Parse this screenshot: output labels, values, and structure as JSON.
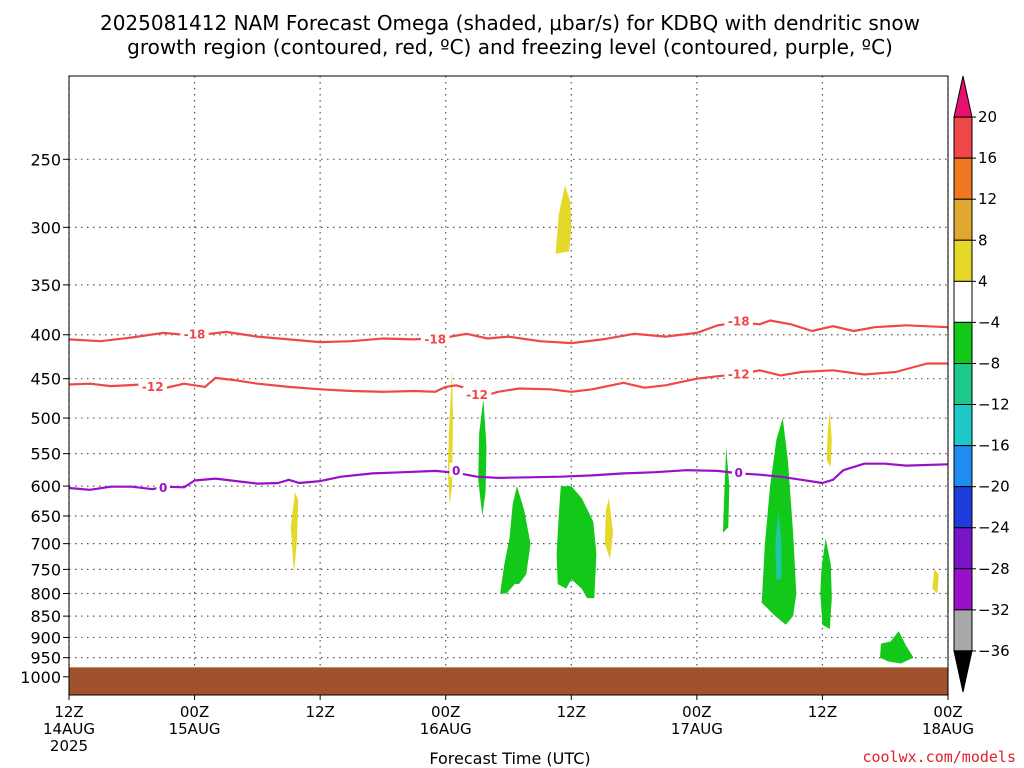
{
  "chart_data": {
    "type": "contour",
    "title_line1": "2025081412 NAM Forecast Omega (shaded, μbar/s) for KDBQ with dendritic snow",
    "title_line2": "growth region (contoured, red, ºC) and freezing level (contoured, purple, ºC)",
    "xlabel": "Forecast Time (UTC)",
    "credit": "coolwx.com/models",
    "colors": {
      "dendritic": "#f04848",
      "freezing": "#9a10c8",
      "ground": "#a0522d",
      "grid": "#555555"
    },
    "y_axis": {
      "scale": "log-pressure",
      "range": [
        200,
        1050
      ],
      "ticks": [
        250,
        300,
        350,
        400,
        450,
        500,
        550,
        600,
        650,
        700,
        750,
        800,
        850,
        900,
        950,
        1000
      ]
    },
    "x_axis": {
      "range_hours": [
        0,
        84
      ],
      "ticks": [
        {
          "hour": 0,
          "line1": "12Z",
          "line2": "14AUG",
          "line3": "2025"
        },
        {
          "hour": 12,
          "line1": "00Z",
          "line2": "15AUG",
          "line3": ""
        },
        {
          "hour": 24,
          "line1": "12Z",
          "line2": "",
          "line3": ""
        },
        {
          "hour": 36,
          "line1": "00Z",
          "line2": "16AUG",
          "line3": ""
        },
        {
          "hour": 48,
          "line1": "12Z",
          "line2": "",
          "line3": ""
        },
        {
          "hour": 60,
          "line1": "00Z",
          "line2": "17AUG",
          "line3": ""
        },
        {
          "hour": 72,
          "line1": "12Z",
          "line2": "",
          "line3": ""
        },
        {
          "hour": 84,
          "line1": "00Z",
          "line2": "18AUG",
          "line3": ""
        }
      ]
    },
    "contours": [
      {
        "name": "-18",
        "color_key": "dendritic",
        "label": "-18",
        "points": [
          [
            0,
            405
          ],
          [
            3,
            407
          ],
          [
            6,
            403
          ],
          [
            9,
            398
          ],
          [
            12,
            401
          ],
          [
            15,
            397
          ],
          [
            18,
            402
          ],
          [
            21,
            405
          ],
          [
            24,
            408
          ],
          [
            27,
            407
          ],
          [
            30,
            404
          ],
          [
            33,
            405
          ],
          [
            36,
            403
          ],
          [
            38,
            399
          ],
          [
            40,
            404
          ],
          [
            42,
            402
          ],
          [
            45,
            407
          ],
          [
            48,
            409
          ],
          [
            51,
            405
          ],
          [
            54,
            399
          ],
          [
            57,
            402
          ],
          [
            60,
            398
          ],
          [
            62,
            390
          ],
          [
            64,
            387
          ],
          [
            66,
            389
          ],
          [
            67,
            385
          ],
          [
            69,
            389
          ],
          [
            71,
            396
          ],
          [
            73,
            391
          ],
          [
            75,
            396
          ],
          [
            77,
            392
          ],
          [
            80,
            390
          ],
          [
            84,
            392
          ]
        ],
        "label_positions": [
          [
            12,
            400
          ],
          [
            35,
            405
          ],
          [
            64,
            386
          ]
        ]
      },
      {
        "name": "-12",
        "color_key": "dendritic",
        "label": "-12",
        "points": [
          [
            0,
            457
          ],
          [
            2,
            456
          ],
          [
            4,
            459
          ],
          [
            7,
            457
          ],
          [
            9,
            462
          ],
          [
            11,
            456
          ],
          [
            13,
            460
          ],
          [
            14,
            449
          ],
          [
            16,
            452
          ],
          [
            18,
            456
          ],
          [
            21,
            460
          ],
          [
            24,
            463
          ],
          [
            27,
            465
          ],
          [
            30,
            466
          ],
          [
            33,
            465
          ],
          [
            35,
            466
          ],
          [
            36,
            460
          ],
          [
            37,
            458
          ],
          [
            38,
            462
          ],
          [
            39,
            470
          ],
          [
            40,
            470
          ],
          [
            41,
            466
          ],
          [
            43,
            462
          ],
          [
            46,
            463
          ],
          [
            48,
            466
          ],
          [
            50,
            463
          ],
          [
            53,
            455
          ],
          [
            55,
            461
          ],
          [
            57,
            458
          ],
          [
            60,
            450
          ],
          [
            62,
            447
          ],
          [
            64,
            445
          ],
          [
            66,
            440
          ],
          [
            68,
            446
          ],
          [
            70,
            442
          ],
          [
            73,
            440
          ],
          [
            76,
            445
          ],
          [
            79,
            442
          ],
          [
            82,
            432
          ],
          [
            84,
            432
          ]
        ],
        "label_positions": [
          [
            8,
            460
          ],
          [
            39,
            470
          ],
          [
            64,
            445
          ]
        ]
      },
      {
        "name": "0",
        "color_key": "freezing",
        "label": "0",
        "points": [
          [
            0,
            603
          ],
          [
            2,
            606
          ],
          [
            4,
            601
          ],
          [
            6,
            601
          ],
          [
            8,
            605
          ],
          [
            9,
            601
          ],
          [
            11,
            602
          ],
          [
            12,
            591
          ],
          [
            14,
            588
          ],
          [
            16,
            592
          ],
          [
            18,
            596
          ],
          [
            20,
            595
          ],
          [
            21,
            590
          ],
          [
            22,
            595
          ],
          [
            24,
            592
          ],
          [
            26,
            585
          ],
          [
            29,
            580
          ],
          [
            32,
            578
          ],
          [
            35,
            576
          ],
          [
            37,
            579
          ],
          [
            39,
            585
          ],
          [
            41,
            587
          ],
          [
            44,
            586
          ],
          [
            47,
            585
          ],
          [
            50,
            583
          ],
          [
            53,
            580
          ],
          [
            56,
            578
          ],
          [
            59,
            575
          ],
          [
            62,
            576
          ],
          [
            64,
            580
          ],
          [
            66,
            582
          ],
          [
            68,
            585
          ],
          [
            70,
            590
          ],
          [
            72,
            595
          ],
          [
            73,
            590
          ],
          [
            74,
            575
          ],
          [
            76,
            565
          ],
          [
            78,
            565
          ],
          [
            80,
            568
          ],
          [
            84,
            566
          ]
        ],
        "label_positions": [
          [
            9,
            603
          ],
          [
            37,
            576
          ],
          [
            64,
            579
          ]
        ]
      }
    ],
    "omega_regions": [
      {
        "name": "yellow-300",
        "color": "#e6d828",
        "class": "4 to 8",
        "points": [
          [
            46.5,
            322
          ],
          [
            46.8,
            290
          ],
          [
            47.4,
            268
          ],
          [
            47.9,
            280
          ],
          [
            48.0,
            300
          ],
          [
            47.8,
            320
          ]
        ]
      },
      {
        "name": "yellow-740",
        "color": "#e6d828",
        "class": "4 to 8",
        "points": [
          [
            21.2,
            670
          ],
          [
            21.6,
            610
          ],
          [
            21.9,
            622
          ],
          [
            21.8,
            690
          ],
          [
            21.5,
            760
          ]
        ]
      },
      {
        "name": "yellow-520",
        "color": "#e6d828",
        "class": "4 to 8",
        "points": [
          [
            36.2,
            580
          ],
          [
            36.3,
            520
          ],
          [
            36.6,
            440
          ],
          [
            36.7,
            500
          ],
          [
            36.6,
            600
          ],
          [
            36.4,
            630
          ]
        ]
      },
      {
        "name": "green-550",
        "color": "#12c818",
        "class": "-4 to -8",
        "points": [
          [
            39.1,
            590
          ],
          [
            39.2,
            520
          ],
          [
            39.6,
            475
          ],
          [
            39.9,
            540
          ],
          [
            39.8,
            610
          ],
          [
            39.5,
            650
          ]
        ]
      },
      {
        "name": "green-720",
        "color": "#12c818",
        "class": "-4 to -8",
        "points": [
          [
            41.2,
            800
          ],
          [
            41.6,
            740
          ],
          [
            42.1,
            690
          ],
          [
            42.4,
            630
          ],
          [
            42.8,
            600
          ],
          [
            43.5,
            640
          ],
          [
            44.1,
            700
          ],
          [
            43.7,
            760
          ],
          [
            43.0,
            780
          ],
          [
            42.6,
            780
          ],
          [
            41.8,
            800
          ]
        ]
      },
      {
        "name": "green-700",
        "color": "#12c818",
        "class": "-4 to -8",
        "points": [
          [
            46.7,
            780
          ],
          [
            46.6,
            720
          ],
          [
            46.8,
            650
          ],
          [
            47.0,
            600
          ],
          [
            48.0,
            600
          ],
          [
            49.0,
            620
          ],
          [
            50.1,
            660
          ],
          [
            50.4,
            720
          ],
          [
            50.2,
            810
          ],
          [
            49.5,
            810
          ],
          [
            49.0,
            790
          ],
          [
            48.0,
            770
          ],
          [
            47.5,
            790
          ]
        ]
      },
      {
        "name": "yellow-680",
        "color": "#e6d828",
        "class": "4 to 8",
        "points": [
          [
            51.2,
            700
          ],
          [
            51.3,
            640
          ],
          [
            51.6,
            620
          ],
          [
            52.0,
            680
          ],
          [
            51.7,
            730
          ]
        ]
      },
      {
        "name": "green-630",
        "color": "#12c818",
        "class": "-4 to -8",
        "points": [
          [
            62.5,
            680
          ],
          [
            62.6,
            620
          ],
          [
            62.8,
            540
          ],
          [
            63.1,
            600
          ],
          [
            63.0,
            670
          ]
        ]
      },
      {
        "name": "green-730",
        "color": "#12c818",
        "class": "-4 to -8",
        "points": [
          [
            66.2,
            820
          ],
          [
            66.5,
            700
          ],
          [
            67.0,
            600
          ],
          [
            67.6,
            530
          ],
          [
            68.2,
            500
          ],
          [
            68.7,
            560
          ],
          [
            69.2,
            680
          ],
          [
            69.5,
            800
          ],
          [
            69.2,
            850
          ],
          [
            68.5,
            870
          ],
          [
            67.5,
            850
          ]
        ]
      },
      {
        "name": "cyan-710",
        "color": "#1ec8a0",
        "class": "-8 to -12",
        "points": [
          [
            67.6,
            770
          ],
          [
            67.5,
            700
          ],
          [
            67.8,
            640
          ],
          [
            68.1,
            700
          ],
          [
            68.1,
            770
          ]
        ]
      },
      {
        "name": "yellow-530",
        "color": "#e6d828",
        "class": "4 to 8",
        "points": [
          [
            72.4,
            560
          ],
          [
            72.5,
            520
          ],
          [
            72.7,
            490
          ],
          [
            72.9,
            530
          ],
          [
            72.8,
            570
          ]
        ]
      },
      {
        "name": "green-800",
        "color": "#12c818",
        "class": "-4 to -8",
        "points": [
          [
            72.0,
            870
          ],
          [
            71.8,
            800
          ],
          [
            71.9,
            750
          ],
          [
            72.3,
            690
          ],
          [
            72.8,
            740
          ],
          [
            72.9,
            810
          ],
          [
            72.7,
            880
          ]
        ]
      },
      {
        "name": "green-930",
        "color": "#12c818",
        "class": "-4 to -8",
        "points": [
          [
            77.5,
            950
          ],
          [
            77.6,
            915
          ],
          [
            78.5,
            910
          ],
          [
            79.3,
            885
          ],
          [
            80.0,
            920
          ],
          [
            80.7,
            950
          ],
          [
            79.5,
            965
          ],
          [
            78.3,
            960
          ]
        ]
      },
      {
        "name": "yellow-775",
        "color": "#e6d828",
        "class": "4 to 8",
        "points": [
          [
            82.5,
            790
          ],
          [
            82.7,
            750
          ],
          [
            83.1,
            760
          ],
          [
            83.0,
            800
          ]
        ]
      },
      {
        "name": "yellow-830",
        "color": "#e6d828",
        "class": "4 to 8",
        "points": [
          [
            84.0,
            840
          ],
          [
            83.9,
            800
          ],
          [
            84.0,
            770
          ],
          [
            84.0,
            900
          ]
        ]
      }
    ],
    "ground_top_mb": 975,
    "colorbar": {
      "units": "μbar/s",
      "bins": [
        {
          "color": "#e8106e"
        },
        {
          "color": "#f04848"
        },
        {
          "color": "#f07820"
        },
        {
          "color": "#e0a830"
        },
        {
          "color": "#e6d828"
        },
        {
          "color": "#ffffff"
        },
        {
          "color": "#12c818"
        },
        {
          "color": "#1ec88a"
        },
        {
          "color": "#1ec8c8"
        },
        {
          "color": "#1e8cf0"
        },
        {
          "color": "#1e3cdc"
        },
        {
          "color": "#7a14c8"
        },
        {
          "color": "#9a10c8"
        },
        {
          "color": "#a8a8a8"
        },
        {
          "color": "#000000"
        }
      ],
      "labels": [
        "20",
        "16",
        "12",
        "8",
        "4",
        "−4",
        "−8",
        "−12",
        "−16",
        "−20",
        "−24",
        "−28",
        "−32",
        "−36"
      ]
    }
  }
}
